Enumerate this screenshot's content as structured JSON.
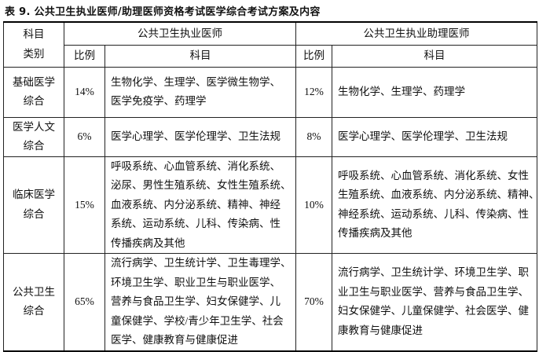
{
  "title": "表 9.  公共卫生执业医师/助理医师资格考试医学综合考试方案及内容",
  "header": {
    "category_label": [
      "科目",
      "类别"
    ],
    "group1": "公共卫生执业医师",
    "group2": "公共卫生执业助理医师",
    "ratio": "比例",
    "subjects": "科目"
  },
  "rows": [
    {
      "category": [
        "基础医学",
        "综合"
      ],
      "ratio1": "14%",
      "subjects1": [
        "生物化学、生理学、医学微生物学、",
        "医学免疫学、药理学"
      ],
      "ratio2": "12%",
      "subjects2": [
        "生物化学、生理学、药理学"
      ]
    },
    {
      "category": [
        "医学人文",
        "综合"
      ],
      "ratio1": "6%",
      "subjects1": [
        "医学心理学、医学伦理学、卫生法规"
      ],
      "ratio2": "8%",
      "subjects2": [
        "医学心理学、医学伦理学、卫生法规"
      ]
    },
    {
      "category": [
        "临床医学",
        "综合"
      ],
      "ratio1": "15%",
      "subjects1": [
        "呼吸系统、心血管系统、消化系统、",
        "泌尿、男性生殖系统、女性生殖系统、",
        "血液系统、内分泌系统、精神、神经",
        "系统、运动系统、儿科、传染病、性",
        "传播疾病及其他"
      ],
      "ratio2": "10%",
      "subjects2": [
        "呼吸系统、心血管系统、消化系统、女性",
        "生殖系统、血液系统、内分泌系统、精神、",
        "神经系统、运动系统、儿科、传染病、性",
        "传播疾病及其他"
      ]
    },
    {
      "category": [
        "公共卫生",
        "综合"
      ],
      "ratio1": "65%",
      "subjects1": [
        "流行病学、卫生统计学、卫生毒理学、",
        "环境卫生学、职业卫生与职业医学、",
        "营养与食品卫生学、妇女保健学、儿",
        "童保健学、学校/青少年卫生学、社会",
        "医学、健康教育与健康促进"
      ],
      "ratio2": "70%",
      "subjects2": [
        "流行病学、卫生统计学、环境卫生学、职",
        "业卫生与职业医学、营养与食品卫生学、",
        "妇女保健学、儿童保健学、社会医学、健",
        "康教育与健康促进"
      ]
    }
  ]
}
